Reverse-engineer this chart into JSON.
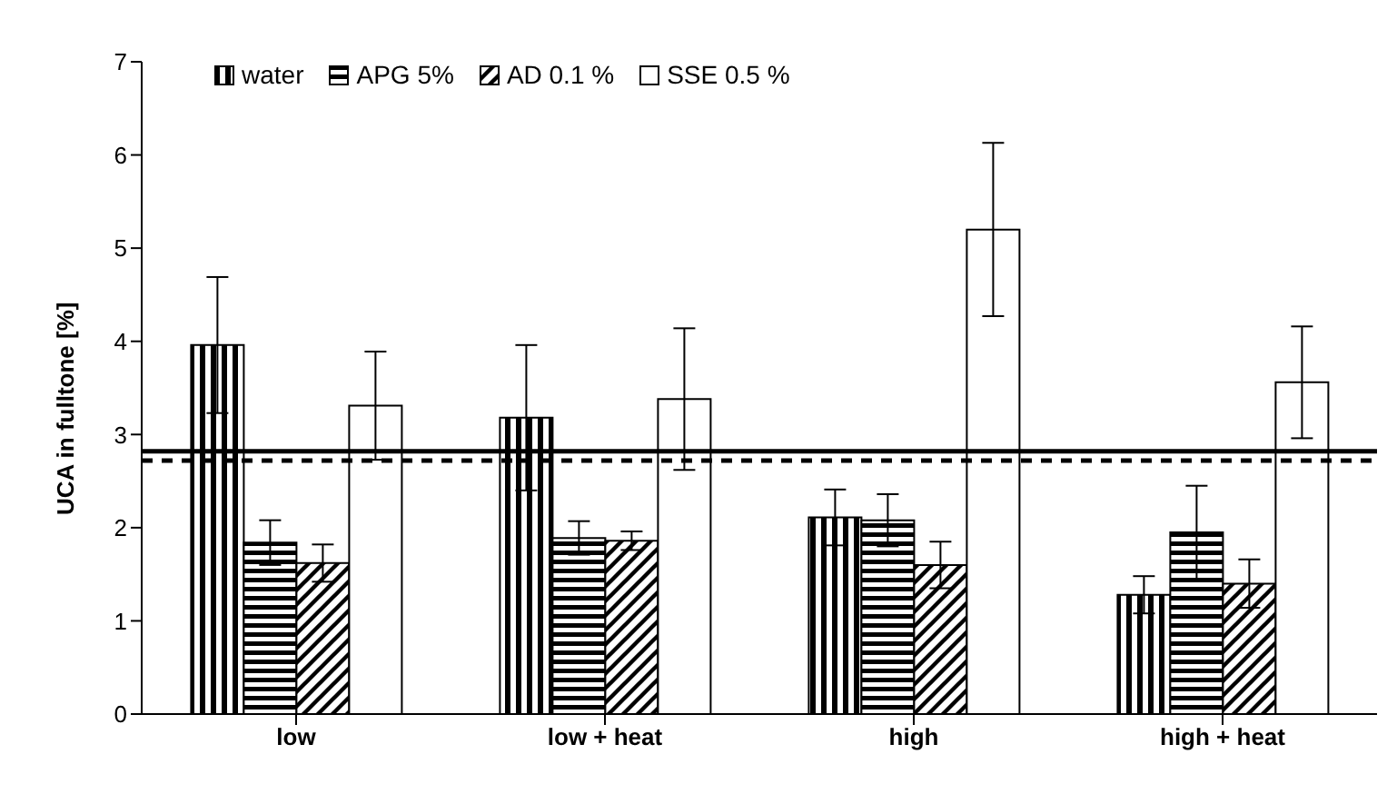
{
  "chart_data": {
    "type": "bar",
    "ylabel": "UCA in fulltone [%]",
    "categories": [
      "low",
      "low + heat",
      "high",
      "high + heat"
    ],
    "series": [
      {
        "name": "water",
        "color": "#000000",
        "values": [
          3.96,
          3.18,
          2.11,
          1.28
        ],
        "errors": [
          0.73,
          0.78,
          0.3,
          0.2
        ]
      },
      {
        "name": "APG 5%",
        "color": "#000000",
        "values": [
          1.84,
          1.89,
          2.08,
          1.95
        ],
        "errors": [
          0.24,
          0.18,
          0.28,
          0.5
        ]
      },
      {
        "name": "AD 0.1 %",
        "color": "#000000",
        "values": [
          1.62,
          1.86,
          1.6,
          1.4
        ],
        "errors": [
          0.2,
          0.1,
          0.25,
          0.26
        ]
      },
      {
        "name": "SSE 0.5 %",
        "color": "#ffffff",
        "values": [
          3.31,
          3.38,
          5.2,
          3.56
        ],
        "errors": [
          0.58,
          0.76,
          0.93,
          0.6
        ]
      }
    ],
    "ylim": [
      0,
      7
    ],
    "yticks": [
      0,
      1,
      2,
      3,
      4,
      5,
      6,
      7
    ],
    "grid": false,
    "legend": "top left",
    "ref_lines": [
      {
        "axis": "y",
        "value": 2.82,
        "color": "#000000",
        "line_style": "solid"
      },
      {
        "axis": "y",
        "value": 2.72,
        "color": "#000000",
        "line_style": "dashed"
      }
    ]
  }
}
